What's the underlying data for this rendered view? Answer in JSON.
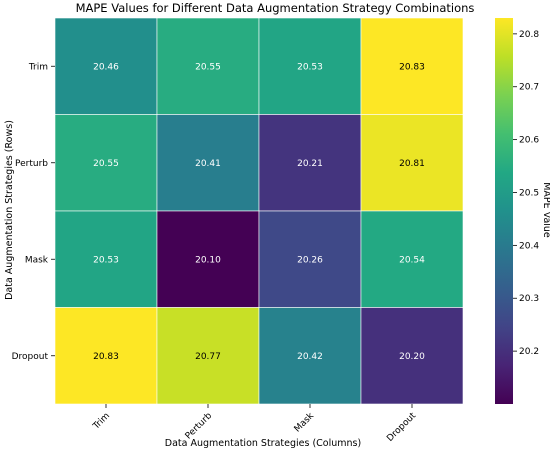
{
  "chart_data": {
    "type": "heatmap",
    "title": "MAPE Values for Different Data Augmentation Strategy Combinations",
    "xlabel": "Data Augmentation Strategies (Columns)",
    "ylabel": "Data Augmentation Strategies (Rows)",
    "x_categories": [
      "Trim",
      "Perturb",
      "Mask",
      "Dropout"
    ],
    "y_categories": [
      "Trim",
      "Perturb",
      "Mask",
      "Dropout"
    ],
    "values": [
      [
        20.46,
        20.55,
        20.53,
        20.83
      ],
      [
        20.55,
        20.41,
        20.21,
        20.81
      ],
      [
        20.53,
        20.1,
        20.26,
        20.54
      ],
      [
        20.83,
        20.77,
        20.42,
        20.2
      ]
    ],
    "value_labels": [
      [
        "20.46",
        "20.55",
        "20.53",
        "20.83"
      ],
      [
        "20.55",
        "20.41",
        "20.21",
        "20.81"
      ],
      [
        "20.53",
        "20.10",
        "20.26",
        "20.54"
      ],
      [
        "20.83",
        "20.77",
        "20.42",
        "20.20"
      ]
    ],
    "colormap": "viridis",
    "colorbar": {
      "label": "MAPE Value",
      "range": [
        20.1,
        20.83
      ],
      "ticks": [
        20.2,
        20.3,
        20.4,
        20.5,
        20.6,
        20.7,
        20.8
      ],
      "tick_labels": [
        "20.2",
        "20.3",
        "20.4",
        "20.5",
        "20.6",
        "20.7",
        "20.8"
      ]
    }
  }
}
